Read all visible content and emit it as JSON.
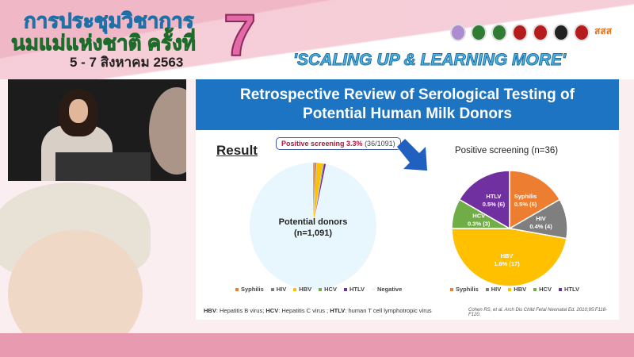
{
  "banner": {
    "thai_line1": "การประชุมวิชาการ",
    "thai_line2": "นมแม่แห่งชาติ ครั้งที่",
    "thai_date": "5 - 7 สิงหาคม 2563",
    "edition": "7",
    "slogan": "'SCALING UP & LEARNING MORE'",
    "sponsor_logo_text": "สสส"
  },
  "slide": {
    "title_line1": "Retrospective Review of Serological Testing of",
    "title_line2": "Potential Human Milk Donors",
    "result_label": "Result",
    "callout_bold": "Positive screening 3.3%",
    "callout_count": "(36/1091)",
    "left_center_line1": "Potential donors",
    "left_center_line2": "(n=1,091)",
    "right_title": "Positive screening (n=36)",
    "footnote_parts": [
      {
        "b": "HBV",
        "t": ": Hepatitis B virus; "
      },
      {
        "b": "HCV",
        "t": ": Hepatitis C virus ; "
      },
      {
        "b": "HTLV",
        "t": ": human T cell lymphotropic virus"
      }
    ],
    "citation": "Cohen RS, et al. Arch Dis Child Fetal Neonatal Ed. 2010;95:F118-F120."
  },
  "chart_data": [
    {
      "type": "pie",
      "title": "",
      "categories": [
        "Syphilis",
        "HIV",
        "HBV",
        "HCV",
        "HTLV",
        "Negative"
      ],
      "values": [
        6,
        4,
        17,
        3,
        6,
        1055
      ],
      "colors": [
        "#ed7d31",
        "#7f7f7f",
        "#ffc000",
        "#70ad47",
        "#7030a0",
        "#e8f7fd"
      ],
      "center_label": "Potential donors (n=1,091)",
      "legend": "bottom"
    },
    {
      "type": "pie",
      "title": "Positive screening (n=36)",
      "categories": [
        "Syphilis",
        "HIV",
        "HBV",
        "HCV",
        "HTLV"
      ],
      "values": [
        6,
        4,
        17,
        3,
        6
      ],
      "data_labels": [
        "Syphilis 0.5% (6)",
        "HIV 0.4% (4)",
        "HBV 1.6% (17)",
        "HCV 0.3% (3)",
        "HTLV 0.5% (6)"
      ],
      "colors": [
        "#ed7d31",
        "#7f7f7f",
        "#ffc000",
        "#70ad47",
        "#7030a0"
      ],
      "legend": "bottom"
    }
  ]
}
